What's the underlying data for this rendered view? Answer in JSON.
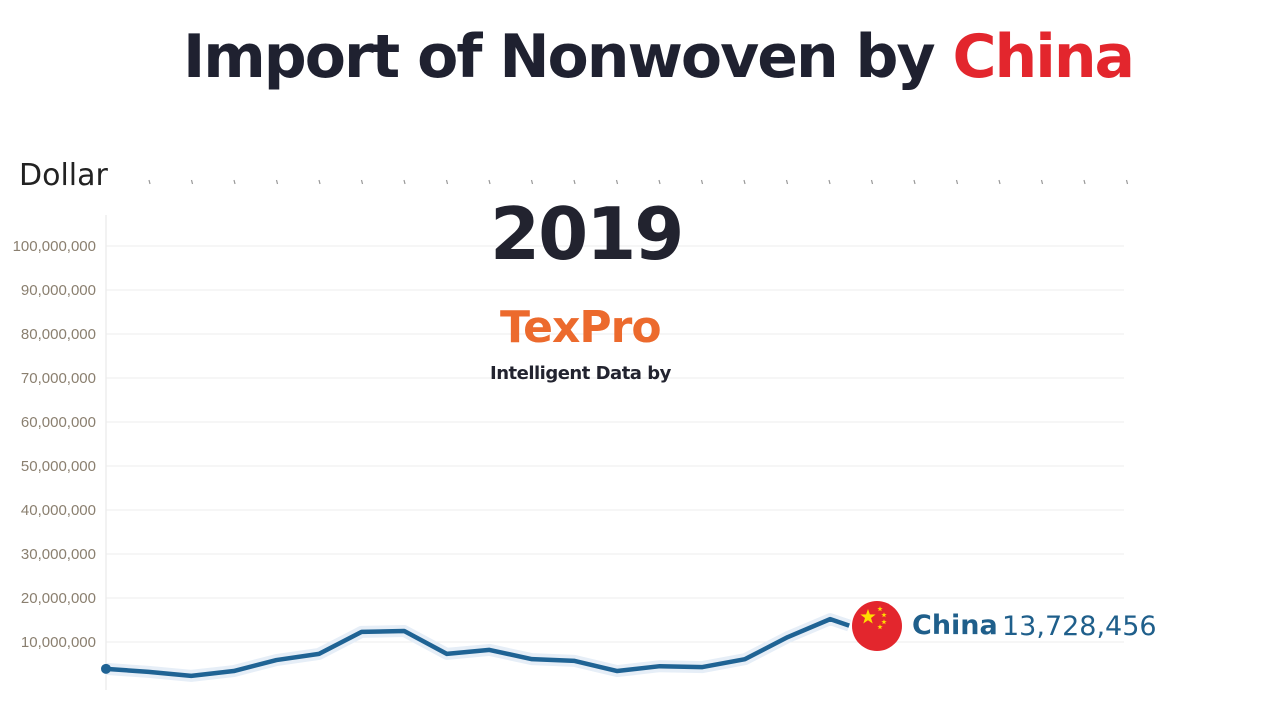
{
  "title": {
    "prefix": "Import of Nonwoven  by ",
    "highlight": "China"
  },
  "colors": {
    "line": "#1f6394",
    "highlight": "#e3262d",
    "logo": "#ec6a2d",
    "axis_label": "#8a7f6f"
  },
  "chart_data": {
    "type": "line",
    "title": "Import of Nonwoven by China",
    "ylabel": "Dollar",
    "ylim": [
      0,
      100000000
    ],
    "yticks": [
      10000000,
      20000000,
      30000000,
      40000000,
      50000000,
      60000000,
      70000000,
      80000000,
      90000000,
      100000000
    ],
    "ytick_labels": [
      "10,000,000",
      "20,000,000",
      "30,000,000",
      "40,000,000",
      "50,000,000",
      "60,000,000",
      "70,000,000",
      "80,000,000",
      "90,000,000",
      "100,000,000"
    ],
    "grid": true,
    "current_year": "2019",
    "series": [
      {
        "name": "China",
        "values": [
          3900000,
          3200000,
          2300000,
          3400000,
          5900000,
          7300000,
          12300000,
          12500000,
          7300000,
          8200000,
          6100000,
          5700000,
          3400000,
          4500000,
          4300000,
          6100000,
          11100000,
          15200000,
          13728456
        ],
        "current_value_label": "13,728,456",
        "icon": "china-flag-icon"
      }
    ]
  },
  "logo": {
    "text": "TexPro",
    "tagline": "Intelligent Data by"
  }
}
